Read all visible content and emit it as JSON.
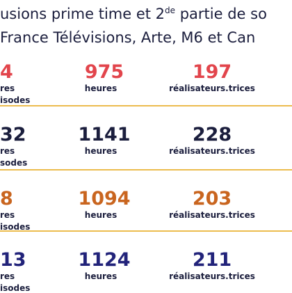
{
  "header": {
    "line1": {
      "before": "usions prime time et 2",
      "sup": "de",
      "after": " partie de so"
    },
    "line2": "France Télévisions, Arte, M6 et Can"
  },
  "rows": [
    {
      "color": "#e2454c",
      "col1": {
        "value": "4",
        "label1": "res",
        "label2": "isodes"
      },
      "col2": {
        "value": 975,
        "label": "heures"
      },
      "col3": {
        "value": 197,
        "label": "réalisateurs.trices"
      }
    },
    {
      "color": "#1b1e3d",
      "col1": {
        "value": "32",
        "label1": "res",
        "label2": "sodes"
      },
      "col2": {
        "value": 1141,
        "label": "heures"
      },
      "col3": {
        "value": 228,
        "label": "réalisateurs.trices"
      }
    },
    {
      "color": "#c9651f",
      "col1": {
        "value": "8",
        "label1": "res",
        "label2": "isodes"
      },
      "col2": {
        "value": 1094,
        "label": "heures"
      },
      "col3": {
        "value": 203,
        "label": "réalisateurs.trices"
      }
    },
    {
      "color": "#22237a",
      "col1": {
        "value": "13",
        "label1": "res",
        "label2": "isodes"
      },
      "col2": {
        "value": 1124,
        "label": "heures"
      },
      "col3": {
        "value": 211,
        "label": "réalisateurs.trices"
      }
    }
  ]
}
